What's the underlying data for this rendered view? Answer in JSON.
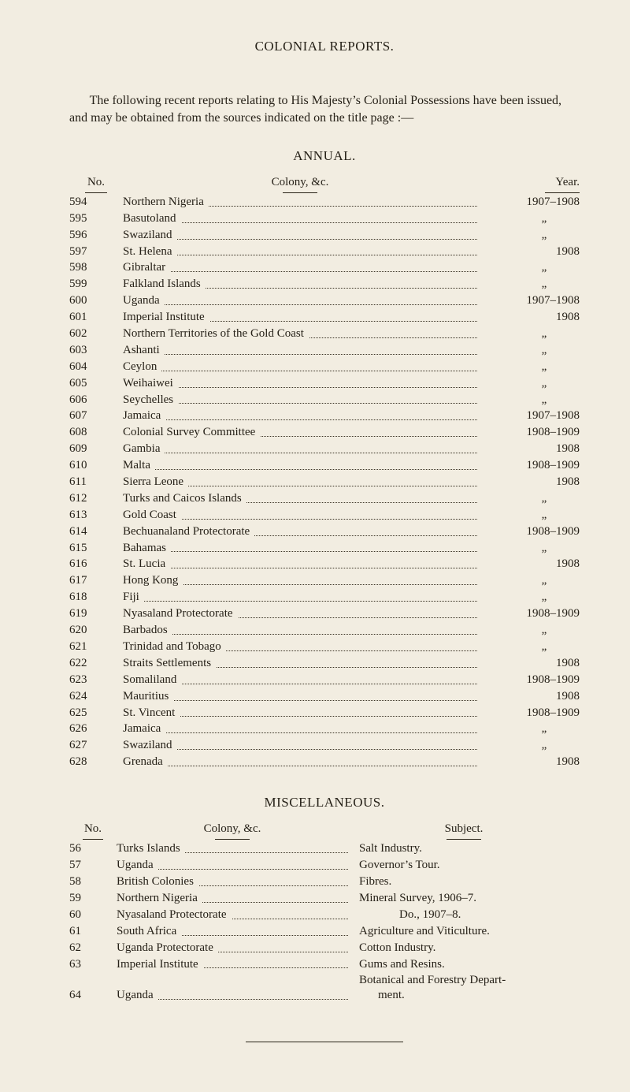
{
  "page": {
    "title": "COLONIAL REPORTS.",
    "intro": "The following recent reports relating to His Majesty’s Colonial Possessions have been issued, and may be obtained from the sources indicated on the title page :—",
    "bg_color": "#f2ede1",
    "text_color": "#262118"
  },
  "annual": {
    "heading": "ANNUAL.",
    "head_no": "No.",
    "head_colony": "Colony, &c.",
    "head_year": "Year.",
    "rows": [
      {
        "no": "594",
        "colony": "Northern Nigeria",
        "year": "1907–1908"
      },
      {
        "no": "595",
        "colony": "Basutoland",
        "year": "„"
      },
      {
        "no": "596",
        "colony": "Swaziland",
        "year": "„"
      },
      {
        "no": "597",
        "colony": "St. Helena",
        "year": "1908"
      },
      {
        "no": "598",
        "colony": "Gibraltar",
        "year": "„"
      },
      {
        "no": "599",
        "colony": "Falkland Islands",
        "year": "„"
      },
      {
        "no": "600",
        "colony": "Uganda",
        "year": "1907–1908"
      },
      {
        "no": "601",
        "colony": "Imperial Institute",
        "year": "1908"
      },
      {
        "no": "602",
        "colony": "Northern Territories of the Gold Coast",
        "year": "„"
      },
      {
        "no": "603",
        "colony": "Ashanti",
        "year": "„"
      },
      {
        "no": "604",
        "colony": "Ceylon",
        "year": "„"
      },
      {
        "no": "605",
        "colony": "Weihaiwei",
        "year": "„"
      },
      {
        "no": "606",
        "colony": "Seychelles",
        "year": "„"
      },
      {
        "no": "607",
        "colony": "Jamaica",
        "year": "1907–1908"
      },
      {
        "no": "608",
        "colony": "Colonial Survey Committee",
        "year": "1908–1909"
      },
      {
        "no": "609",
        "colony": "Gambia",
        "year": "1908"
      },
      {
        "no": "610",
        "colony": "Malta",
        "year": "1908–1909"
      },
      {
        "no": "611",
        "colony": "Sierra Leone",
        "year": "1908"
      },
      {
        "no": "612",
        "colony": "Turks and Caicos Islands",
        "year": "„"
      },
      {
        "no": "613",
        "colony": "Gold Coast",
        "year": "„"
      },
      {
        "no": "614",
        "colony": "Bechuanaland Protectorate",
        "year": "1908–1909"
      },
      {
        "no": "615",
        "colony": "Bahamas",
        "year": "„"
      },
      {
        "no": "616",
        "colony": "St. Lucia",
        "year": "1908"
      },
      {
        "no": "617",
        "colony": "Hong Kong",
        "year": "„"
      },
      {
        "no": "618",
        "colony": "Fiji",
        "year": "„"
      },
      {
        "no": "619",
        "colony": "Nyasaland Protectorate",
        "year": "1908–1909"
      },
      {
        "no": "620",
        "colony": "Barbados",
        "year": "„"
      },
      {
        "no": "621",
        "colony": "Trinidad and Tobago",
        "year": "„"
      },
      {
        "no": "622",
        "colony": "Straits Settlements",
        "year": "1908"
      },
      {
        "no": "623",
        "colony": "Somaliland",
        "year": "1908–1909"
      },
      {
        "no": "624",
        "colony": "Mauritius",
        "year": "1908"
      },
      {
        "no": "625",
        "colony": "St. Vincent",
        "year": "1908–1909"
      },
      {
        "no": "626",
        "colony": "Jamaica",
        "year": "„"
      },
      {
        "no": "627",
        "colony": "Swaziland",
        "year": "„"
      },
      {
        "no": "628",
        "colony": "Grenada",
        "year": "1908"
      }
    ]
  },
  "misc": {
    "heading": "MISCELLANEOUS.",
    "head_no": "No.",
    "head_colony": "Colony, &c.",
    "head_subject": "Subject.",
    "rows": [
      {
        "no": "56",
        "colony": "Turks Islands",
        "subject": "Salt Industry."
      },
      {
        "no": "57",
        "colony": "Uganda",
        "subject": "Governor’s Tour."
      },
      {
        "no": "58",
        "colony": "British Colonies",
        "subject": "Fibres."
      },
      {
        "no": "59",
        "colony": "Northern Nigeria",
        "subject": "Mineral Survey, 1906–7."
      },
      {
        "no": "60",
        "colony": "Nyasaland Protectorate",
        "subject": "Do.,        1907–8.",
        "indent": true
      },
      {
        "no": "61",
        "colony": "South Africa",
        "subject": "Agriculture and Viticulture."
      },
      {
        "no": "62",
        "colony": "Uganda Protectorate",
        "subject": "Cotton Industry."
      },
      {
        "no": "63",
        "colony": "Imperial Institute",
        "subject": "Gums and Resins."
      },
      {
        "no": "64",
        "colony": "Uganda",
        "subject": "Botanical and Forestry Depart-",
        "cont": "ment."
      }
    ]
  }
}
